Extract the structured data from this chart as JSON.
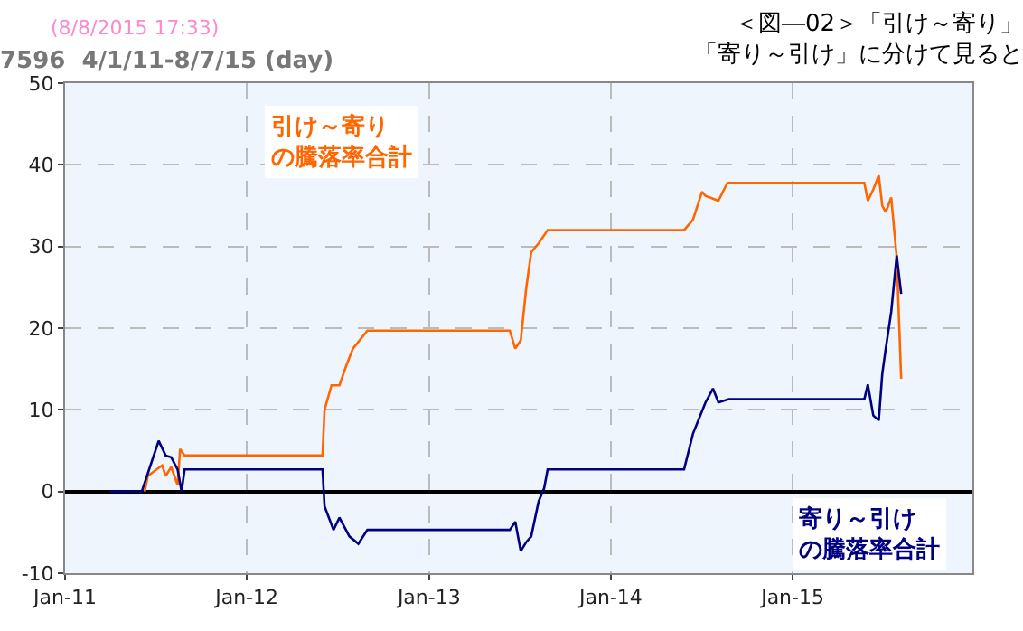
{
  "chart_data": {
    "type": "line",
    "title": "7596  4/1/11-8/7/15 (day)",
    "annotations": [
      "(8/8/2015 17:33)",
      "＜図―02＞「引け～寄り」「寄り～引け」に分けて見ると"
    ],
    "series": [
      {
        "name": "引け～寄りの騰落率合計",
        "color": "#ff6600",
        "x": [
          "2011-06-10",
          "2011-06-16",
          "2011-07-15",
          "2011-07-22",
          "2011-08-02",
          "2011-08-15",
          "2011-08-20",
          "2011-08-29",
          "2012-06-01",
          "2012-06-05",
          "2012-06-19",
          "2012-07-05",
          "2012-07-18",
          "2012-08-01",
          "2012-08-30",
          "2013-06-12",
          "2013-06-23",
          "2013-07-04",
          "2013-07-15",
          "2013-07-25",
          "2013-08-09",
          "2013-08-27",
          "2014-05-28",
          "2014-06-15",
          "2014-07-03",
          "2014-07-10",
          "2014-08-05",
          "2014-08-23",
          "2015-05-25",
          "2015-06-01",
          "2015-06-12",
          "2015-06-23",
          "2015-06-30",
          "2015-07-07",
          "2015-07-18",
          "2015-07-29",
          "2015-08-07"
        ],
        "values": [
          0,
          1.9,
          3.2,
          1.9,
          3.0,
          0.8,
          5.2,
          4.4,
          4.4,
          10,
          13,
          13,
          15.3,
          17.5,
          19.7,
          19.7,
          17.5,
          18.5,
          24.9,
          29.3,
          30.4,
          32,
          32,
          33.3,
          36.7,
          36.2,
          35.6,
          37.8,
          37.8,
          35.6,
          37,
          38.7,
          35,
          34.2,
          36,
          28.7,
          13.8
        ]
      },
      {
        "name": "寄り～引けの騰落率合計",
        "color": "#000080",
        "x": [
          "2011-04-01",
          "2011-06-04",
          "2011-06-27",
          "2011-07-08",
          "2011-07-22",
          "2011-08-02",
          "2011-08-15",
          "2011-08-23",
          "2011-08-29",
          "2012-06-01",
          "2012-06-05",
          "2012-06-23",
          "2012-07-05",
          "2012-07-25",
          "2012-08-12",
          "2012-08-30",
          "2013-06-12",
          "2013-06-23",
          "2013-07-04",
          "2013-07-15",
          "2013-07-25",
          "2013-08-09",
          "2013-08-20",
          "2013-08-27",
          "2014-05-28",
          "2014-06-15",
          "2014-07-10",
          "2014-07-25",
          "2014-08-05",
          "2014-08-26",
          "2015-05-25",
          "2015-06-01",
          "2015-06-12",
          "2015-06-23",
          "2015-06-30",
          "2015-07-07",
          "2015-07-18",
          "2015-07-29",
          "2015-08-07"
        ],
        "values": [
          0,
          0,
          4.2,
          6.2,
          4.4,
          4.2,
          2.7,
          0,
          2.7,
          2.7,
          -1.8,
          -4.7,
          -3.2,
          -5.5,
          -6.4,
          -4.7,
          -4.7,
          -3.7,
          -7.3,
          -6.2,
          -5.5,
          -1.2,
          0.4,
          2.7,
          2.7,
          7.1,
          10.9,
          12.6,
          10.9,
          11.3,
          11.3,
          13.1,
          9.3,
          8.7,
          14.4,
          17.5,
          22,
          28.9,
          24.2
        ]
      }
    ],
    "xlim": [
      "2011-01-01",
      "2015-12-28"
    ],
    "xticks": [
      {
        "value": "2011-01-01",
        "label": "Jan-11"
      },
      {
        "value": "2012-01-01",
        "label": "Jan-12"
      },
      {
        "value": "2013-01-01",
        "label": "Jan-13"
      },
      {
        "value": "2014-01-01",
        "label": "Jan-14"
      },
      {
        "value": "2015-01-01",
        "label": "Jan-15"
      }
    ],
    "ylim": [
      -10,
      50
    ],
    "yticks": [
      -10,
      0,
      10,
      20,
      30,
      40,
      50
    ],
    "grid": true,
    "legend": false,
    "marker": "none",
    "line_style": "solid"
  }
}
